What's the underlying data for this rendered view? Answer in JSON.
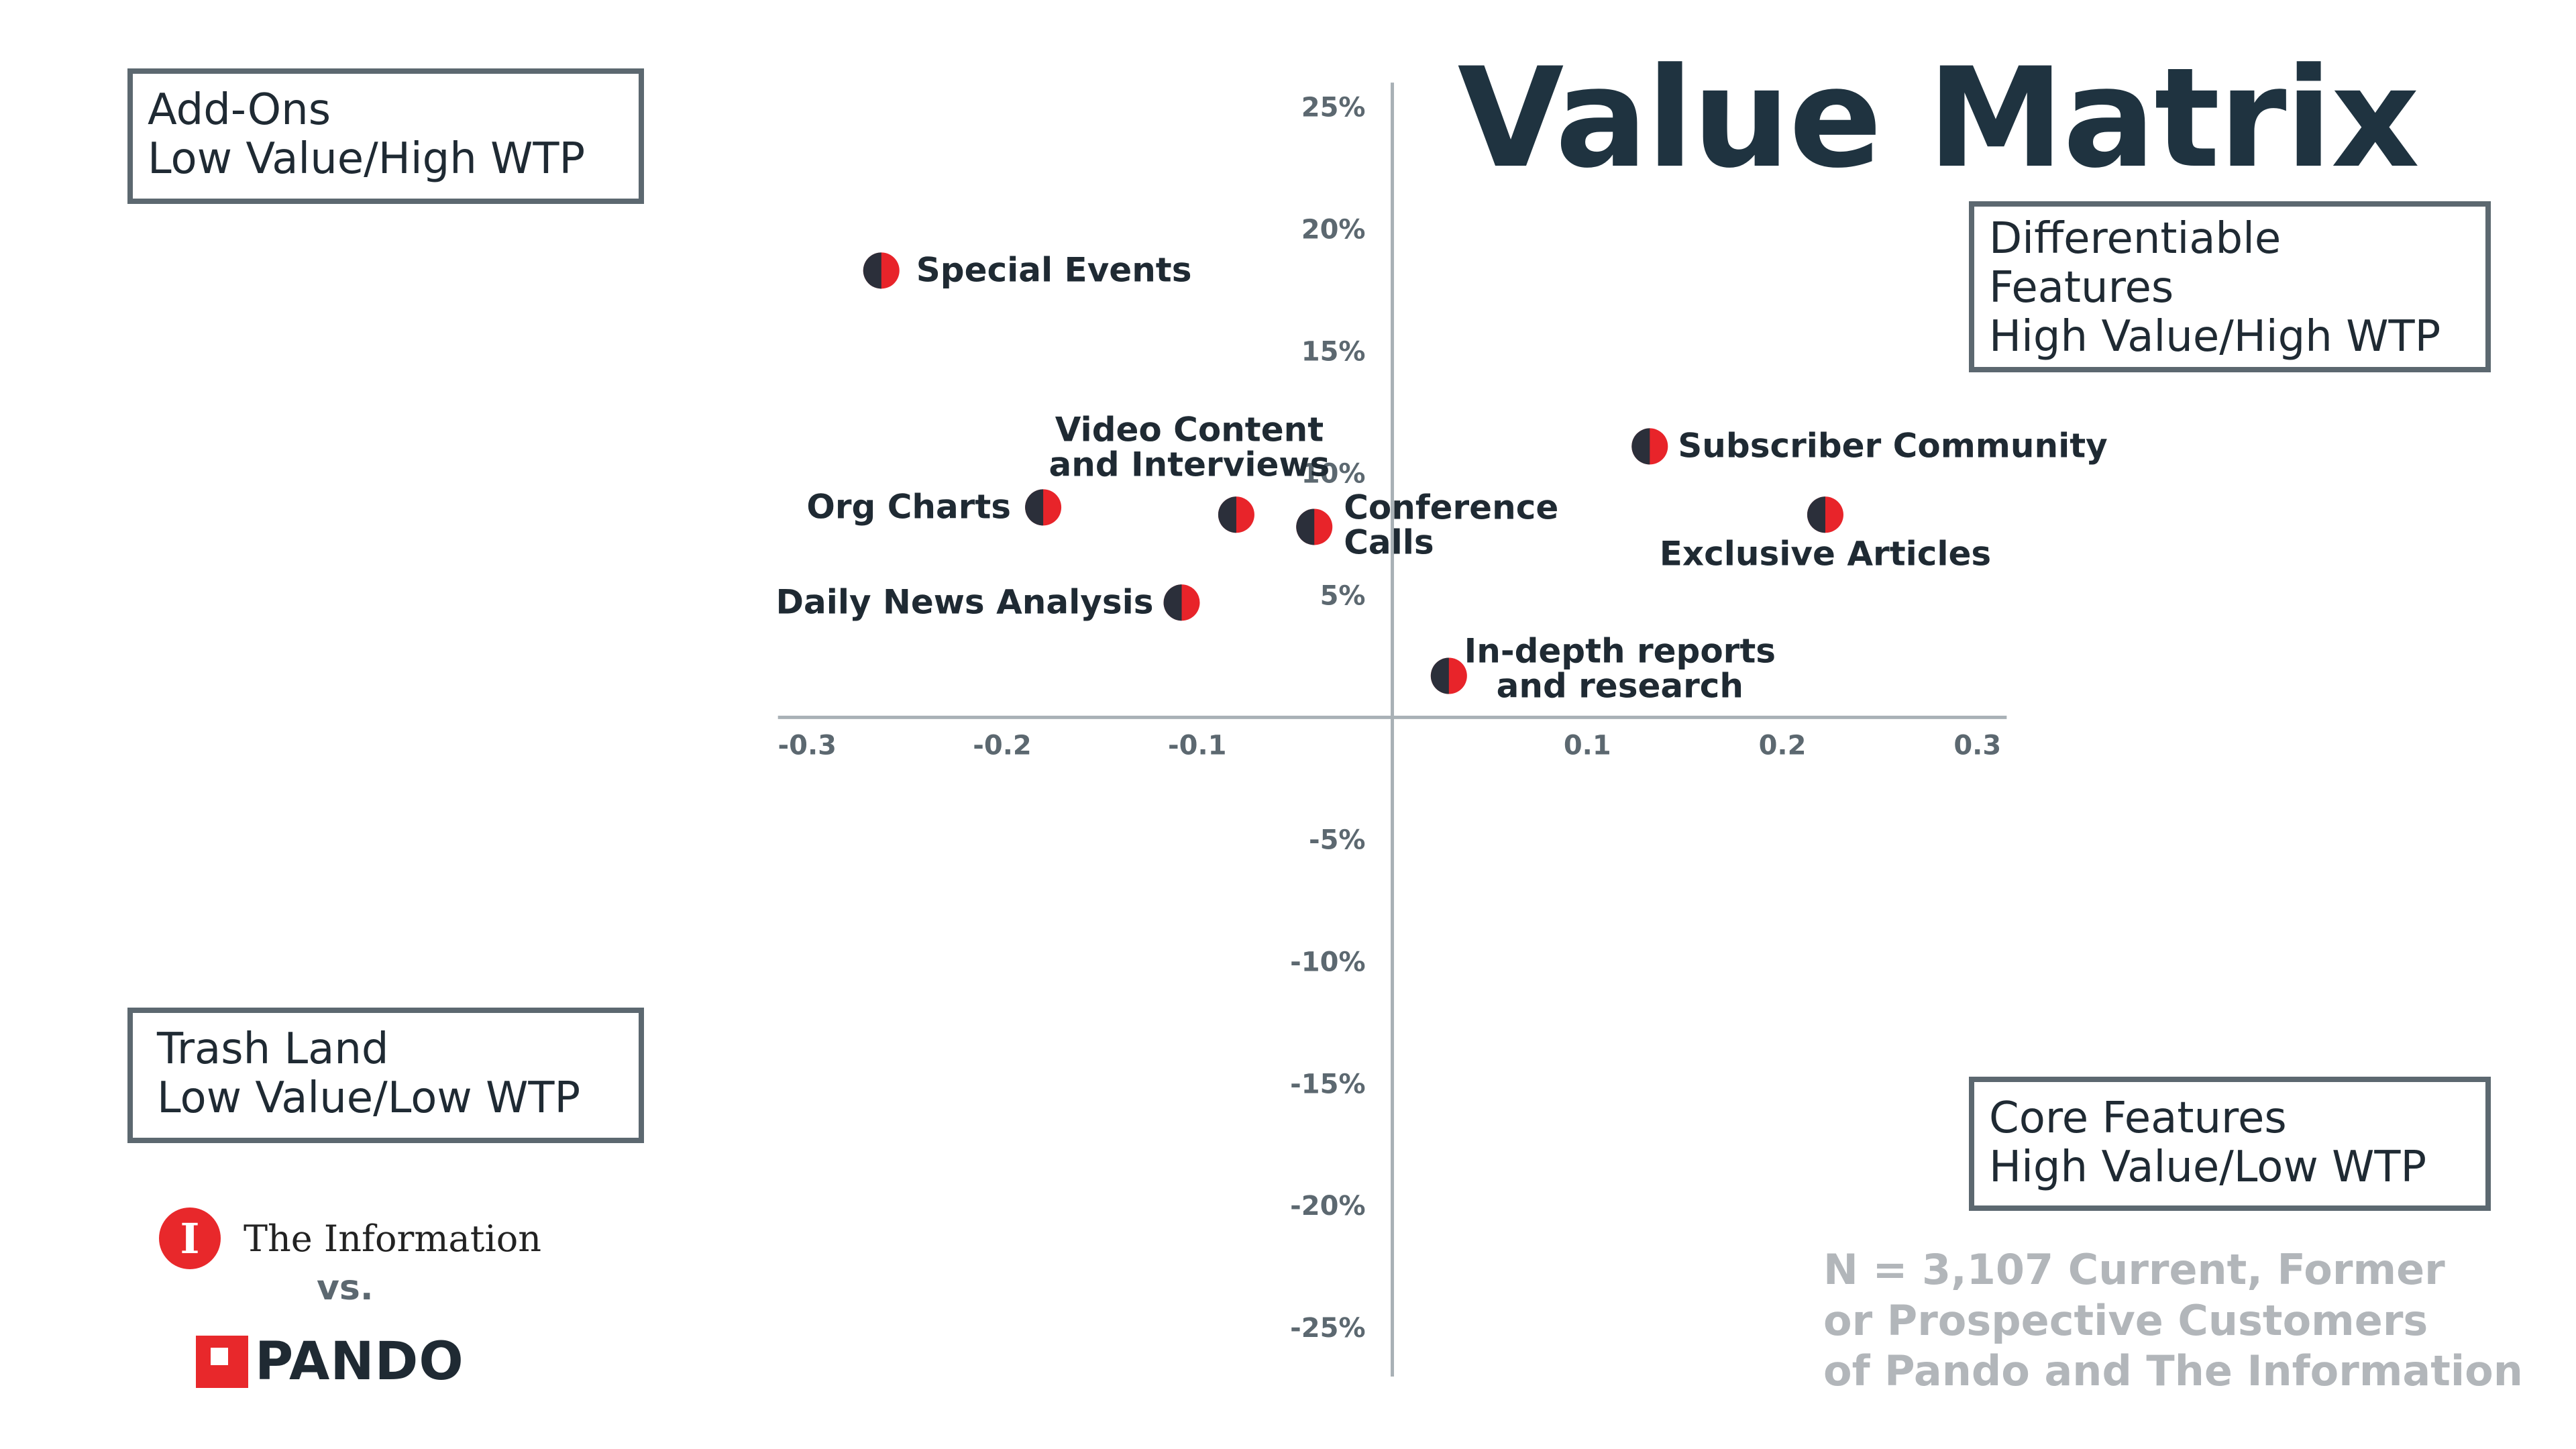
{
  "chart_data": {
    "type": "scatter",
    "title": "Value Matrix",
    "xlim": [
      -0.315,
      0.315
    ],
    "ylim": [
      -0.27,
      0.26
    ],
    "xticks": [
      {
        "value": -0.3,
        "label": "-0.3"
      },
      {
        "value": -0.2,
        "label": "-0.2"
      },
      {
        "value": -0.1,
        "label": "-0.1"
      },
      {
        "value": 0.1,
        "label": "0.1"
      },
      {
        "value": 0.2,
        "label": "0.2"
      },
      {
        "value": 0.3,
        "label": "0.3"
      }
    ],
    "yticks": [
      {
        "value": 0.25,
        "label": "25%"
      },
      {
        "value": 0.2,
        "label": "20%"
      },
      {
        "value": 0.15,
        "label": "15%"
      },
      {
        "value": 0.1,
        "label": "10%"
      },
      {
        "value": 0.05,
        "label": "5%"
      },
      {
        "value": -0.05,
        "label": "-5%"
      },
      {
        "value": -0.1,
        "label": "-10%"
      },
      {
        "value": -0.15,
        "label": "-15%"
      },
      {
        "value": -0.2,
        "label": "-20%"
      },
      {
        "value": -0.25,
        "label": "-25%"
      }
    ],
    "points": [
      {
        "label": "Special Events",
        "x": -0.262,
        "y": 0.183
      },
      {
        "label": "Subscriber Community",
        "x": 0.132,
        "y": 0.111
      },
      {
        "label": "Org Charts",
        "x": -0.179,
        "y": 0.086
      },
      {
        "label": "Video Content and Interviews",
        "x": -0.08,
        "y": 0.083
      },
      {
        "label": "Conference Calls",
        "x": -0.04,
        "y": 0.078
      },
      {
        "label": "Exclusive Articles",
        "x": 0.222,
        "y": 0.083
      },
      {
        "label": "Daily News Analysis",
        "x": -0.108,
        "y": 0.047
      },
      {
        "label": "In-depth reports and research",
        "x": 0.029,
        "y": 0.017
      }
    ],
    "point_colors": {
      "left_half": "#2b2f3a",
      "right_half": "#e8242a"
    },
    "axis_color": "#a9b1b6",
    "grid": false
  },
  "quadrants": {
    "top_left": [
      "Add-Ons",
      "Low Value/High WTP"
    ],
    "top_right": [
      "Differentiable",
      "Features",
      "High Value/High WTP"
    ],
    "bottom_left": [
      "Trash Land",
      "Low Value/Low WTP"
    ],
    "bottom_right": [
      "Core Features",
      "High Value/Low WTP"
    ]
  },
  "brands": {
    "info_logo_letter": "I",
    "info_name": "The Information",
    "vs": "vs.",
    "pando_name": "PANDO"
  },
  "note": [
    "N = 3,107 Current, Former",
    "or Prospective Customers",
    "of Pando and The Information"
  ]
}
